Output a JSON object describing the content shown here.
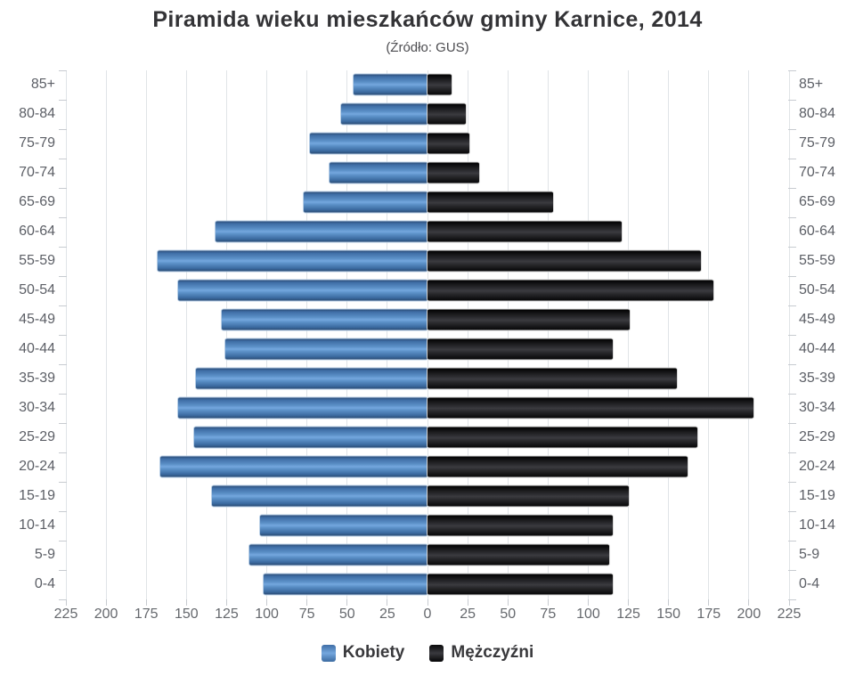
{
  "title": "Piramida wieku mieszkańców gminy Karnice, 2014",
  "subtitle": "(Źródło: GUS)",
  "colors": {
    "women_bar": "#5b90c7",
    "men_bar": "#1a1a1d",
    "gridline": "#e0e4e7",
    "axis_text": "#66696e",
    "category_text": "#5c5f66"
  },
  "chart_data": {
    "type": "bar",
    "subtype": "population-pyramid",
    "title": "Piramida wieku mieszkańców gminy Karnice, 2014",
    "subtitle": "(Źródło: GUS)",
    "categories": [
      "85+",
      "80-84",
      "75-79",
      "70-74",
      "65-69",
      "60-64",
      "55-59",
      "50-54",
      "45-49",
      "40-44",
      "35-39",
      "30-34",
      "25-29",
      "20-24",
      "15-19",
      "10-14",
      "5-9",
      "0-4"
    ],
    "series": [
      {
        "name": "Kobiety",
        "side": "left",
        "color": "#5b90c7",
        "values": [
          46,
          54,
          73,
          61,
          77,
          132,
          168,
          155,
          128,
          126,
          144,
          155,
          145,
          166,
          134,
          104,
          111,
          102
        ]
      },
      {
        "name": "Mężczyźni",
        "side": "right",
        "color": "#1a1a1d",
        "values": [
          15,
          24,
          26,
          32,
          78,
          121,
          170,
          178,
          126,
          115,
          155,
          203,
          168,
          162,
          125,
          115,
          113,
          115
        ]
      }
    ],
    "xlim": [
      0,
      225
    ],
    "tick_interval": 25,
    "x_tick_labels": [
      "225",
      "200",
      "175",
      "150",
      "125",
      "100",
      "75",
      "50",
      "25",
      "0",
      "25",
      "50",
      "75",
      "100",
      "125",
      "150",
      "175",
      "200",
      "225"
    ],
    "grid": true,
    "legend_position": "bottom"
  }
}
